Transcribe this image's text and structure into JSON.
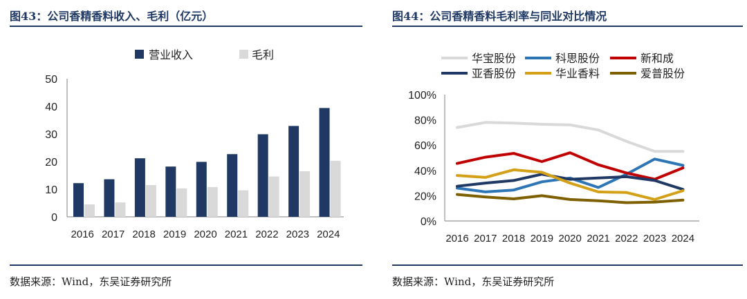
{
  "left": {
    "title": "图43：公司香精香料收入、毛利（亿元）",
    "source": "数据来源：Wind，东吴证券研究所"
  },
  "right": {
    "title": "图44：公司香精香料毛利率与同业对比情况",
    "source": "数据来源：Wind，东吴证券研究所"
  },
  "chart_data": [
    {
      "type": "bar",
      "categories": [
        "2016",
        "2017",
        "2018",
        "2019",
        "2020",
        "2021",
        "2022",
        "2023",
        "2024"
      ],
      "series": [
        {
          "name": "营业收入",
          "color": "#1f3864",
          "values": [
            12.2,
            13.6,
            21.2,
            18.2,
            19.9,
            22.7,
            29.9,
            32.9,
            39.4
          ]
        },
        {
          "name": "毛利",
          "color": "#d9d9d9",
          "values": [
            4.5,
            5.2,
            11.5,
            10.3,
            10.8,
            9.6,
            14.6,
            16.5,
            20.3
          ]
        }
      ],
      "ylim": [
        0,
        50
      ],
      "yticks": [
        0,
        10,
        20,
        30,
        40,
        50
      ],
      "legend": "top"
    },
    {
      "type": "line",
      "categories": [
        "2016",
        "2017",
        "2018",
        "2019",
        "2020",
        "2021",
        "2022",
        "2023",
        "2024"
      ],
      "series": [
        {
          "name": "华宝股份",
          "color": "#d9d9d9",
          "values": [
            74,
            78,
            77.5,
            76.5,
            76,
            72,
            63,
            55,
            55
          ]
        },
        {
          "name": "科思股份",
          "color": "#2e75b6",
          "values": [
            26,
            23,
            24.5,
            31,
            34,
            26.5,
            37,
            49,
            44
          ]
        },
        {
          "name": "新和成",
          "color": "#c00000",
          "values": [
            45.5,
            50.5,
            53.5,
            47,
            54,
            44.5,
            38,
            33,
            42
          ]
        },
        {
          "name": "亚香股份",
          "color": "#1f3864",
          "values": [
            27.5,
            30,
            32,
            37,
            33,
            34,
            35,
            32,
            25
          ]
        },
        {
          "name": "华业香料",
          "color": "#d4a017",
          "values": [
            36,
            34.5,
            40.5,
            38.5,
            30,
            23,
            22.5,
            17,
            24
          ]
        },
        {
          "name": "爱普股份",
          "color": "#7f6000",
          "values": [
            21,
            19,
            17.5,
            20,
            17,
            16,
            14.5,
            15,
            16.5
          ]
        }
      ],
      "ylim": [
        0,
        100
      ],
      "yticks": [
        "0%",
        "20%",
        "40%",
        "60%",
        "80%",
        "100%"
      ],
      "legend": "top"
    }
  ]
}
